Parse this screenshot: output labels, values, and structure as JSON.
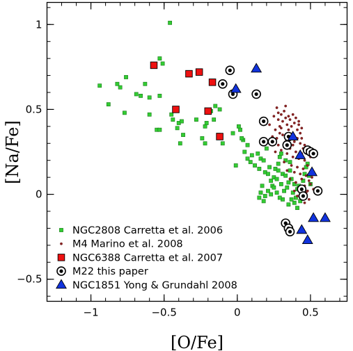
{
  "chart_data": {
    "type": "scatter",
    "xlabel": "[O/Fe]",
    "ylabel": "[Na/Fe]",
    "xlim": [
      -1.3,
      0.75
    ],
    "ylim": [
      -0.63,
      1.13
    ],
    "x_ticks": [
      -1,
      -0.5,
      0,
      0.5
    ],
    "y_ticks": [
      -0.5,
      0,
      0.5,
      1
    ],
    "x_tick_labels": [
      "−1",
      "−0.5",
      "0",
      "0.5"
    ],
    "y_tick_labels": [
      "−0.5",
      "0",
      "0.5",
      "1"
    ],
    "legend_position": "bottom-left",
    "series": [
      {
        "name": "NGC2808 Carretta et al. 2006",
        "marker": "small-square",
        "color": "#33cc33",
        "points": [
          [
            -0.46,
            1.01
          ],
          [
            -0.53,
            0.8
          ],
          [
            -0.51,
            0.77
          ],
          [
            -0.94,
            0.64
          ],
          [
            -0.82,
            0.65
          ],
          [
            -0.8,
            0.63
          ],
          [
            -0.76,
            0.69
          ],
          [
            -0.63,
            0.65
          ],
          [
            -0.69,
            0.59
          ],
          [
            -0.66,
            0.58
          ],
          [
            -0.6,
            0.57
          ],
          [
            -0.53,
            0.58
          ],
          [
            -0.88,
            0.53
          ],
          [
            -0.77,
            0.48
          ],
          [
            -0.6,
            0.47
          ],
          [
            -0.55,
            0.38
          ],
          [
            -0.53,
            0.38
          ],
          [
            -0.45,
            0.47
          ],
          [
            -0.44,
            0.44
          ],
          [
            -0.4,
            0.42
          ],
          [
            -0.38,
            0.43
          ],
          [
            -0.41,
            0.39
          ],
          [
            -0.37,
            0.35
          ],
          [
            -0.39,
            0.3
          ],
          [
            -0.28,
            0.44
          ],
          [
            -0.22,
            0.4
          ],
          [
            -0.21,
            0.42
          ],
          [
            -0.18,
            0.49
          ],
          [
            -0.15,
            0.52
          ],
          [
            -0.12,
            0.5
          ],
          [
            -0.16,
            0.44
          ],
          [
            -0.24,
            0.33
          ],
          [
            -0.22,
            0.3
          ],
          [
            -0.13,
            0.35
          ],
          [
            -0.1,
            0.3
          ],
          [
            -0.03,
            0.36
          ],
          [
            0.01,
            0.4
          ],
          [
            0.02,
            0.38
          ],
          [
            0.04,
            0.32
          ],
          [
            0.07,
            0.29
          ],
          [
            -0.01,
            0.17
          ],
          [
            0.03,
            0.33
          ],
          [
            0.05,
            0.25
          ],
          [
            0.07,
            0.21
          ],
          [
            0.09,
            0.19
          ],
          [
            0.1,
            0.23
          ],
          [
            0.12,
            0.17
          ],
          [
            0.14,
            0.24
          ],
          [
            0.15,
            0.15
          ],
          [
            0.16,
            0.21
          ],
          [
            0.18,
            0.2
          ],
          [
            0.19,
            0.13
          ],
          [
            0.2,
            0.27
          ],
          [
            0.21,
            0.12
          ],
          [
            0.22,
            0.16
          ],
          [
            0.23,
            0.08
          ],
          [
            0.24,
            0.05
          ],
          [
            0.25,
            0.1
          ],
          [
            0.26,
            0.15
          ],
          [
            0.27,
            0.09
          ],
          [
            0.28,
            0.18
          ],
          [
            0.29,
            0.22
          ],
          [
            0.3,
            0.06
          ],
          [
            0.31,
            0.12
          ],
          [
            0.32,
            0.02
          ],
          [
            0.33,
            0.11
          ],
          [
            0.34,
            0.04
          ],
          [
            0.35,
            0.07
          ],
          [
            0.36,
            0.14
          ],
          [
            0.37,
            0.09
          ],
          [
            0.38,
            0.01
          ],
          [
            0.39,
            0.06
          ],
          [
            0.4,
            -0.02
          ],
          [
            0.41,
            0.03
          ],
          [
            0.42,
            0.05
          ],
          [
            0.43,
            -0.04
          ],
          [
            0.44,
            0.02
          ],
          [
            0.45,
            0.08
          ],
          [
            0.46,
            0.12
          ],
          [
            0.47,
            0.16
          ],
          [
            0.48,
            0.18
          ],
          [
            0.49,
            0.11
          ],
          [
            0.5,
            0.06
          ],
          [
            0.39,
            -0.05
          ],
          [
            0.41,
            -0.08
          ],
          [
            0.37,
            -0.03
          ],
          [
            0.35,
            -0.06
          ],
          [
            0.31,
            -0.03
          ],
          [
            0.29,
            -0.02
          ],
          [
            0.27,
            0.01
          ],
          [
            0.25,
            0.04
          ],
          [
            0.23,
            0.0
          ],
          [
            0.21,
            0.02
          ],
          [
            0.19,
            -0.01
          ],
          [
            0.17,
            0.05
          ],
          [
            0.16,
            0.01
          ],
          [
            0.18,
            -0.04
          ],
          [
            0.15,
            -0.02
          ],
          [
            0.28,
            0.14
          ],
          [
            0.33,
            0.2
          ],
          [
            0.3,
            0.24
          ],
          [
            0.36,
            0.19
          ]
        ]
      },
      {
        "name": "M4 Marino et al. 2008",
        "marker": "small-dot",
        "color": "#8b2323",
        "points": [
          [
            0.22,
            0.41
          ],
          [
            0.25,
            0.46
          ],
          [
            0.27,
            0.51
          ],
          [
            0.28,
            0.44
          ],
          [
            0.29,
            0.4
          ],
          [
            0.3,
            0.47
          ],
          [
            0.31,
            0.43
          ],
          [
            0.32,
            0.49
          ],
          [
            0.33,
            0.45
          ],
          [
            0.34,
            0.41
          ],
          [
            0.35,
            0.38
          ],
          [
            0.36,
            0.44
          ],
          [
            0.37,
            0.4
          ],
          [
            0.38,
            0.47
          ],
          [
            0.39,
            0.42
          ],
          [
            0.4,
            0.45
          ],
          [
            0.41,
            0.38
          ],
          [
            0.42,
            0.41
          ],
          [
            0.43,
            0.36
          ],
          [
            0.44,
            0.39
          ],
          [
            0.26,
            0.38
          ],
          [
            0.24,
            0.34
          ],
          [
            0.27,
            0.33
          ],
          [
            0.29,
            0.36
          ],
          [
            0.31,
            0.35
          ],
          [
            0.33,
            0.31
          ],
          [
            0.35,
            0.33
          ],
          [
            0.37,
            0.35
          ],
          [
            0.39,
            0.31
          ],
          [
            0.41,
            0.33
          ],
          [
            0.43,
            0.3
          ],
          [
            0.45,
            0.27
          ],
          [
            0.28,
            0.29
          ],
          [
            0.3,
            0.26
          ],
          [
            0.32,
            0.28
          ],
          [
            0.34,
            0.24
          ],
          [
            0.36,
            0.27
          ],
          [
            0.38,
            0.22
          ],
          [
            0.4,
            0.25
          ],
          [
            0.42,
            0.21
          ],
          [
            0.44,
            0.24
          ],
          [
            0.46,
            0.2
          ],
          [
            0.48,
            0.17
          ],
          [
            0.5,
            0.22
          ],
          [
            0.37,
            0.17
          ],
          [
            0.39,
            0.13
          ],
          [
            0.41,
            0.16
          ],
          [
            0.43,
            0.12
          ],
          [
            0.45,
            0.15
          ],
          [
            0.47,
            0.11
          ],
          [
            0.49,
            0.08
          ],
          [
            0.51,
            0.1
          ],
          [
            0.4,
            0.07
          ],
          [
            0.42,
            0.04
          ],
          [
            0.44,
            0.09
          ],
          [
            0.46,
            0.05
          ],
          [
            0.48,
            0.02
          ],
          [
            0.5,
            0.06
          ],
          [
            0.52,
            0.03
          ],
          [
            0.43,
            0.0
          ],
          [
            0.45,
            -0.02
          ],
          [
            0.47,
            0.01
          ],
          [
            0.49,
            -0.03
          ],
          [
            0.41,
            -0.01
          ],
          [
            0.39,
            0.02
          ],
          [
            0.46,
            -0.05
          ],
          [
            0.36,
            0.09
          ],
          [
            0.34,
            0.14
          ],
          [
            0.32,
            0.19
          ],
          [
            0.26,
            0.25
          ],
          [
            0.24,
            0.29
          ],
          [
            0.38,
            0.29
          ],
          [
            0.3,
            0.39
          ],
          [
            0.28,
            0.48
          ],
          [
            0.33,
            0.52
          ],
          [
            0.35,
            0.46
          ],
          [
            0.42,
            0.43
          ],
          [
            0.44,
            0.33
          ],
          [
            0.46,
            0.29
          ],
          [
            0.48,
            0.25
          ]
        ]
      },
      {
        "name": "NGC6388 Carretta et al. 2007",
        "marker": "square",
        "color": "#ee1111",
        "points": [
          [
            -0.57,
            0.76
          ],
          [
            -0.33,
            0.71
          ],
          [
            -0.26,
            0.72
          ],
          [
            -0.17,
            0.66
          ],
          [
            -0.42,
            0.5
          ],
          [
            -0.2,
            0.49
          ],
          [
            -0.12,
            0.34
          ]
        ]
      },
      {
        "name": "M22 this paper",
        "marker": "circle-dot",
        "color": "#000000",
        "points": [
          [
            -0.05,
            0.73
          ],
          [
            -0.1,
            0.65
          ],
          [
            -0.03,
            0.59
          ],
          [
            0.13,
            0.59
          ],
          [
            0.18,
            0.43
          ],
          [
            0.18,
            0.31
          ],
          [
            0.24,
            0.31
          ],
          [
            0.35,
            0.34
          ],
          [
            0.34,
            0.29
          ],
          [
            0.48,
            0.26
          ],
          [
            0.5,
            0.25
          ],
          [
            0.52,
            0.24
          ],
          [
            0.44,
            0.03
          ],
          [
            0.45,
            -0.01
          ],
          [
            0.55,
            0.02
          ],
          [
            0.33,
            -0.17
          ],
          [
            0.35,
            -0.2
          ],
          [
            0.36,
            -0.22
          ]
        ]
      },
      {
        "name": "NGC1851 Yong & Grundahl 2008",
        "marker": "triangle",
        "color": "#1133dd",
        "points": [
          [
            0.13,
            0.74
          ],
          [
            -0.01,
            0.62
          ],
          [
            0.38,
            0.34
          ],
          [
            0.43,
            0.23
          ],
          [
            0.51,
            0.13
          ],
          [
            0.44,
            -0.21
          ],
          [
            0.48,
            -0.27
          ],
          [
            0.52,
            -0.14
          ],
          [
            0.6,
            -0.14
          ]
        ]
      }
    ]
  }
}
